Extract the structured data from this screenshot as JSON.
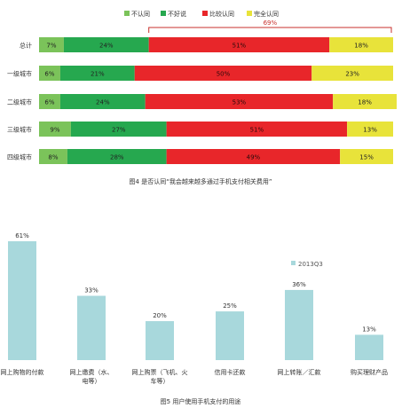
{
  "colors": {
    "disagree": "#7bc35a",
    "unsure": "#26a84f",
    "somewhat_agree": "#e8262a",
    "fully_agree": "#e8e33a",
    "bar2": "#a8d8dc",
    "bracket": "#c9302c"
  },
  "chart_data": [
    {
      "type": "bar",
      "orientation": "horizontal",
      "stacked": true,
      "percent": true,
      "title": "图4  是否认同“我会越来越多通过手机支付相关费用”",
      "legend_position": "top",
      "categories": [
        "总计",
        "一级城市",
        "二级城市",
        "三级城市",
        "四级城市"
      ],
      "series": [
        {
          "name": "不认同",
          "color_key": "disagree",
          "values": [
            7,
            6,
            6,
            9,
            8
          ]
        },
        {
          "name": "不好说",
          "color_key": "unsure",
          "values": [
            24,
            21,
            24,
            27,
            28
          ]
        },
        {
          "name": "比较认同",
          "color_key": "somewhat_agree",
          "values": [
            51,
            50,
            53,
            51,
            49
          ]
        },
        {
          "name": "完全认同",
          "color_key": "fully_agree",
          "values": [
            18,
            23,
            18,
            13,
            15
          ]
        }
      ],
      "annotation": {
        "label": "69%",
        "from_series": 2,
        "to_series": 3,
        "row": 0
      }
    },
    {
      "type": "bar",
      "title": "图5  用户使用手机支付的用途",
      "legend_position": "top-right",
      "categories": [
        "网上购物的付款",
        "网上缴费（水、电等）",
        "网上购票（飞机、火车等）",
        "信用卡还款",
        "网上转账／汇款",
        "购买理财产品"
      ],
      "category_lines": [
        [
          "网上购物的付款"
        ],
        [
          "网上缴费（水、",
          "电等）"
        ],
        [
          "网上购票（飞机、火",
          "车等）"
        ],
        [
          "信用卡还款"
        ],
        [
          "网上转账／汇款"
        ],
        [
          "购买理财产品"
        ]
      ],
      "series": [
        {
          "name": "2013Q3",
          "color_key": "bar2",
          "values": [
            61,
            33,
            20,
            25,
            36,
            13
          ]
        }
      ],
      "ylim": [
        0,
        61
      ]
    }
  ]
}
